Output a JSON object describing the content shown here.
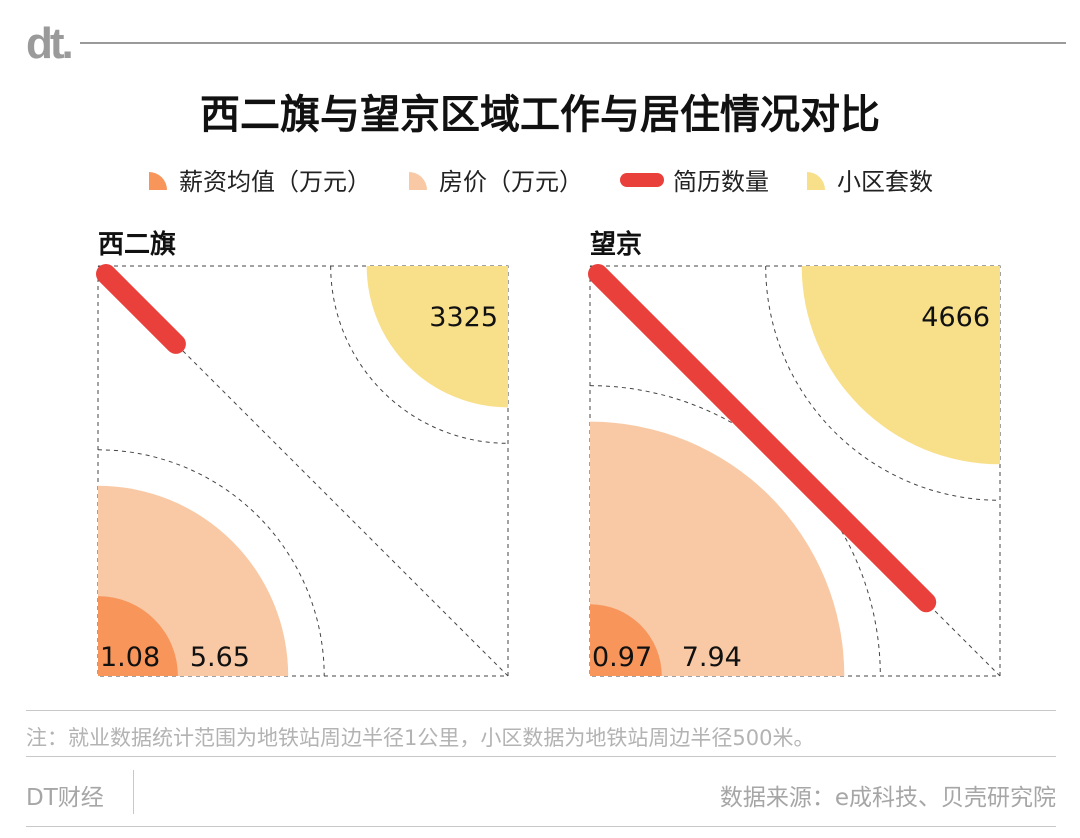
{
  "header": {
    "logo": "dt.",
    "title": "西二旗与望京区域工作与居住情况对比"
  },
  "legend": [
    {
      "label": "薪资均值（万元）",
      "color": "#F7955B",
      "shape": "quarter-circle"
    },
    {
      "label": "房价（万元）",
      "color": "#F9C9A5",
      "shape": "quarter-circle"
    },
    {
      "label": "简历数量",
      "color": "#E9403B",
      "shape": "bar"
    },
    {
      "label": "小区套数",
      "color": "#F8DF8A",
      "shape": "quarter-circle"
    }
  ],
  "chart_data": [
    {
      "type": "quarter-circle",
      "panel": "西二旗",
      "series": [
        {
          "name": "薪资均值（万元）",
          "value": 1.08,
          "label": "1.08",
          "color": "#F7955B"
        },
        {
          "name": "房价（万元）",
          "value": 5.65,
          "label": "5.65",
          "color": "#F9C9A5"
        },
        {
          "name": "简历数量",
          "fraction_of_diagonal": 0.19,
          "color": "#E9403B"
        },
        {
          "name": "小区套数",
          "value": 3325,
          "label": "3325",
          "color": "#F8DF8A"
        }
      ]
    },
    {
      "type": "quarter-circle",
      "panel": "望京",
      "series": [
        {
          "name": "薪资均值（万元）",
          "value": 0.97,
          "label": "0.97",
          "color": "#F7955B"
        },
        {
          "name": "房价（万元）",
          "value": 7.94,
          "label": "7.94",
          "color": "#F9C9A5"
        },
        {
          "name": "简历数量",
          "fraction_of_diagonal": 0.82,
          "color": "#E9403B"
        },
        {
          "name": "小区套数",
          "value": 4666,
          "label": "4666",
          "color": "#F8DF8A"
        }
      ]
    }
  ],
  "colors": {
    "salary": "#F7955B",
    "house": "#F9C9A5",
    "resume": "#E9403B",
    "community": "#F8DF8A",
    "dashed": "#444444"
  },
  "note": "注：就业数据统计范围为地铁站周边半径1公里，小区数据为地铁站周边半径500米。",
  "footer": {
    "brand": "DT财经",
    "source": "数据来源：e成科技、贝壳研究院"
  }
}
